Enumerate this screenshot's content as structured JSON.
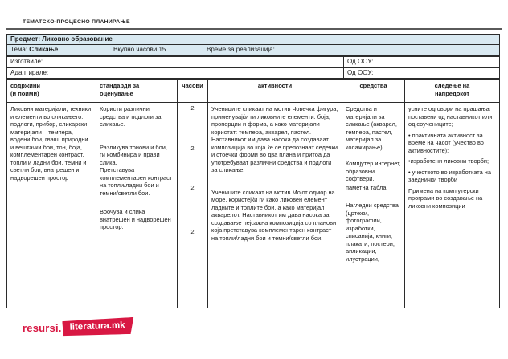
{
  "colors": {
    "header_bg": "#d9e9f1",
    "accent_red": "#d81843",
    "border": "#2b2b2b"
  },
  "page": {
    "header_label": "ТЕМАТСКО-ПРОЦЕСНО ПЛАНИРАЊЕ"
  },
  "meta": {
    "subject_label": "Предмет:",
    "subject_value": "Ликовно образование",
    "theme_label": "Тема:",
    "theme_value": "Сликање",
    "total_hours": "Вкупно часови 15",
    "realization_time": "Време за реализација:",
    "prepared_by_label": "Изготвиле:",
    "adapted_by_label": "Адаптирале:",
    "from_school_label": "Од ООУ:"
  },
  "table": {
    "headers": [
      "содржини\n(и поими)",
      "стандарди за\nоценување",
      "часови",
      "активности",
      "средства",
      "следење на\nнапредокот"
    ],
    "contents": "Ликовни материјали, техники и елементи во сликањето: подлоги, прибор, сликарски материјали – темпера, водени бои, гваш, природни и вештачки бои, тон, боја, комплементарен контраст, топли и ладни бои, темни и светли бои, внатрешен и надворешен простор",
    "standards": [
      "Користи различни средства и подлоги за сликање.",
      "Разликува тонови и бои, ги комбинира и прави слика.",
      "Претставува комплементарен контраст на топли/ладни бои и темни/светли бои.",
      "Воочува и слика внатрешен и надворешен простор."
    ],
    "hours": [
      "2",
      "2",
      "2",
      "2"
    ],
    "activities": [
      "Учениците сликаат на мотив Човечка фигура, применувајќи ги ликовните елементи: боја, пропорции и форма, а како материјали користат: темпера, акварел, пастел. Наставникот им дава насока да создаваат композиција во која ќе се препознаат седечки и стоечки форми во два плана и притоа да употребуваат различни средства и подлоги за сликање.",
      "Учениците сликаат на мотив Мојот одмор на море, користејќи ги како ликовен елемент ладните и топлите бои, а како материјал акварелот. Наставникот им дава насока за создавање пејсажна композиција со планови која претставува комплементарен контраст на топли/ладни бои и темни/светли бои."
    ],
    "resources": [
      "Средства и материјали за сликање (акварел, темпера, пастел, материјал за колажирање).",
      "Компјутер интернет, образовни софтвери.",
      "паметна табла",
      "Нагледни средства (цртежи, фотографии, изработки, списанија, книги, плакати, постери, апликации, илустрации,"
    ],
    "monitoring": [
      "усните одговори на прашања поставени од наставникот или од соучениците;",
      "• практичната активност за време на часот (учество во активностите);",
      "•изработени ликовни творби;",
      "• учеството во изработката на заеднички творби",
      "Примена на компјутерски програми во создавање на ликовни композиции"
    ]
  },
  "footer_logo": {
    "prefix": "resursi.",
    "banner_text": "literatura.mk"
  }
}
